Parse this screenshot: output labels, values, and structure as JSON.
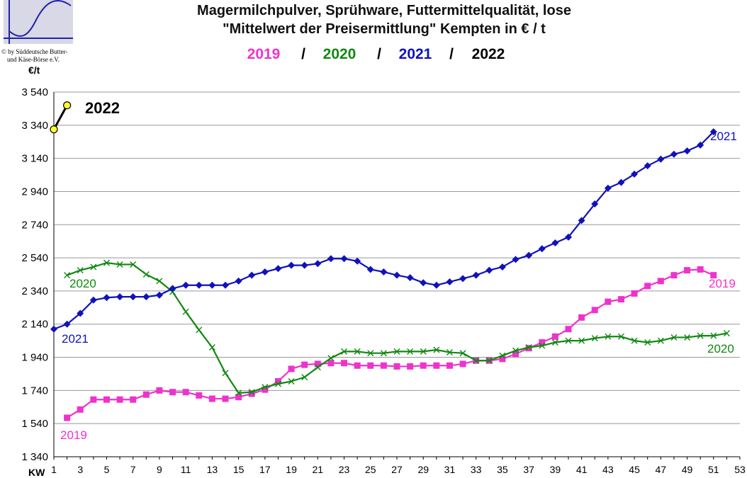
{
  "chart_data": {
    "type": "line",
    "title": "Magermilchpulver, Sprühware, Futtermittelqualität, lose",
    "subtitle": "\"Mittelwert der Preisermittlung\" Kempten in € / t",
    "ylabel": "€/t",
    "xlabel": "KW",
    "copyright_lines": [
      "© by Süddeutsche Butter-",
      "und Käse-Börse e.V."
    ],
    "legend_separator": "/",
    "ylim": [
      1340,
      3540
    ],
    "yticks": [
      1340,
      1540,
      1740,
      1940,
      2140,
      2340,
      2540,
      2740,
      2940,
      3140,
      3340,
      3540
    ],
    "ytick_labels": [
      "1 340",
      "1 540",
      "1 740",
      "1 940",
      "2 140",
      "2 340",
      "2 540",
      "2 740",
      "2 940",
      "3 140",
      "3 340",
      "3 540"
    ],
    "xlim": [
      1,
      53
    ],
    "xtick_labels": [
      "1",
      "3",
      "5",
      "7",
      "9",
      "11",
      "13",
      "15",
      "17",
      "19",
      "21",
      "23",
      "25",
      "27",
      "29",
      "31",
      "33",
      "35",
      "37",
      "39",
      "41",
      "43",
      "45",
      "47",
      "49",
      "51",
      "53"
    ],
    "grid": "horizontal",
    "series": [
      {
        "name": "2019",
        "color": "#ee33cc",
        "marker": "square",
        "start_week": 2,
        "values": [
          1575,
          1625,
          1685,
          1685,
          1685,
          1685,
          1715,
          1740,
          1730,
          1730,
          1710,
          1690,
          1690,
          1700,
          1720,
          1745,
          1795,
          1870,
          1895,
          1900,
          1905,
          1905,
          1890,
          1890,
          1890,
          1885,
          1885,
          1890,
          1890,
          1890,
          1900,
          1920,
          1920,
          1930,
          1960,
          1995,
          2030,
          2065,
          2110,
          2180,
          2225,
          2275,
          2290,
          2325,
          2370,
          2400,
          2435,
          2465,
          2470,
          2435
        ],
        "end_label": "2019",
        "start_label": "2019"
      },
      {
        "name": "2020",
        "color": "#118811",
        "marker": "x",
        "start_week": 2,
        "values": [
          2435,
          2465,
          2485,
          2510,
          2500,
          2500,
          2440,
          2400,
          2335,
          2215,
          2105,
          2000,
          1845,
          1725,
          1730,
          1760,
          1780,
          1795,
          1820,
          1880,
          1935,
          1975,
          1975,
          1965,
          1965,
          1975,
          1975,
          1975,
          1985,
          1970,
          1965,
          1920,
          1920,
          1950,
          1980,
          2000,
          2010,
          2030,
          2040,
          2040,
          2055,
          2065,
          2065,
          2040,
          2030,
          2040,
          2060,
          2060,
          2070,
          2070,
          2085
        ],
        "end_label": "2020",
        "start_label": "2020"
      },
      {
        "name": "2021",
        "color": "#1111bb",
        "marker": "diamond",
        "start_week": 1,
        "values": [
          2110,
          2140,
          2205,
          2285,
          2300,
          2305,
          2305,
          2305,
          2315,
          2355,
          2375,
          2375,
          2375,
          2375,
          2400,
          2435,
          2455,
          2475,
          2495,
          2495,
          2505,
          2535,
          2535,
          2520,
          2470,
          2455,
          2435,
          2420,
          2390,
          2375,
          2395,
          2415,
          2435,
          2465,
          2485,
          2530,
          2555,
          2595,
          2630,
          2665,
          2765,
          2865,
          2960,
          2995,
          3045,
          3095,
          3135,
          3165,
          3185,
          3220,
          3300
        ],
        "end_label": "2021",
        "start_label": "2021"
      },
      {
        "name": "2022",
        "color": "#000000",
        "marker_fill": "#ffff33",
        "marker": "circle",
        "start_week": 1,
        "values": [
          3315,
          3460
        ],
        "end_label": "2022"
      }
    ]
  }
}
